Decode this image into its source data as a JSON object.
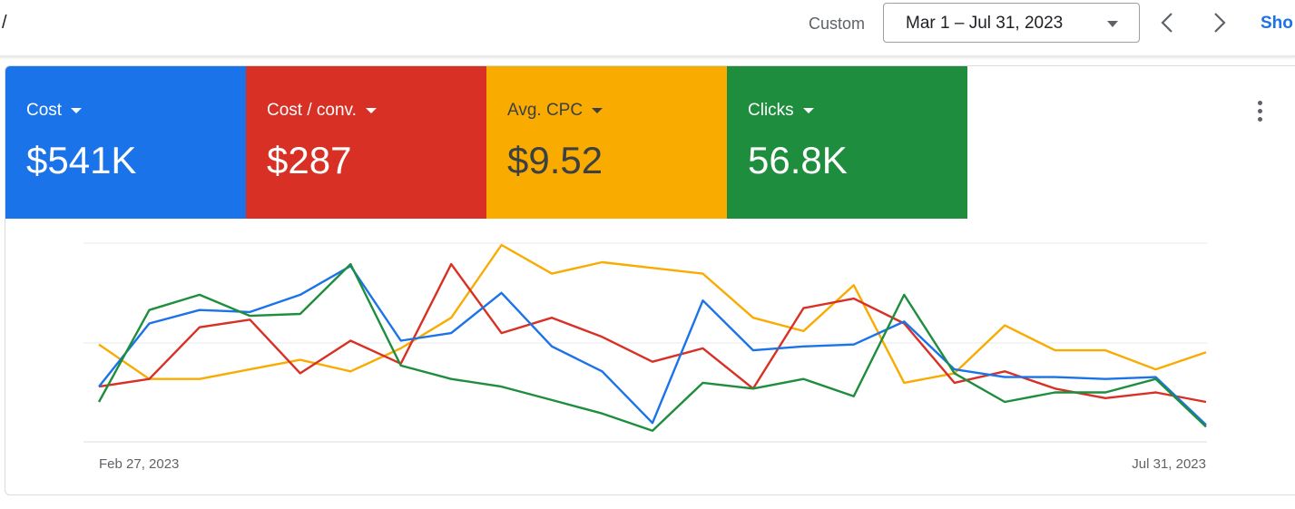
{
  "topbar": {
    "slash": "/",
    "custom_label": "Custom",
    "date_range": "Mar 1 – Jul 31, 2023",
    "show_label": "Sho"
  },
  "colors": {
    "blue": "#1a73e8",
    "red": "#d93025",
    "yellow": "#f9ab00",
    "green": "#1e8e3e"
  },
  "metrics": [
    {
      "label": "Cost",
      "value": "$541K",
      "color": "#1a73e8",
      "text_color": "#ffffff"
    },
    {
      "label": "Cost / conv.",
      "value": "$287",
      "color": "#d93025",
      "text_color": "#ffffff"
    },
    {
      "label": "Avg. CPC",
      "value": "$9.52",
      "color": "#f9ab00",
      "text_color": "#3c4043"
    },
    {
      "label": "Clicks",
      "value": "56.8K",
      "color": "#1e8e3e",
      "text_color": "#ffffff"
    }
  ],
  "chart_data": {
    "type": "line",
    "grid": true,
    "x_tick_labels": [
      "Feb 27, 2023",
      "Jul 31, 2023"
    ],
    "x": [
      "Feb 27, 2023",
      "Mar 6, 2023",
      "Mar 13, 2023",
      "Mar 20, 2023",
      "Mar 27, 2023",
      "Apr 3, 2023",
      "Apr 10, 2023",
      "Apr 17, 2023",
      "Apr 24, 2023",
      "May 1, 2023",
      "May 8, 2023",
      "May 15, 2023",
      "May 22, 2023",
      "May 29, 2023",
      "Jun 5, 2023",
      "Jun 12, 2023",
      "Jun 19, 2023",
      "Jun 26, 2023",
      "Jul 3, 2023",
      "Jul 10, 2023",
      "Jul 17, 2023",
      "Jul 24, 2023",
      "Jul 31, 2023"
    ],
    "ylim": [
      0,
      100
    ],
    "series": [
      {
        "metric": "Cost",
        "color": "#1a73e8",
        "values": [
          26,
          59,
          66,
          65,
          74,
          89,
          50,
          54,
          75,
          47,
          34,
          7,
          71,
          45,
          47,
          48,
          60,
          35,
          31,
          31,
          30,
          31,
          6
        ]
      },
      {
        "metric": "Cost / conv.",
        "color": "#d93025",
        "values": [
          26,
          30,
          57,
          61,
          33,
          50,
          38,
          90,
          54,
          62,
          52,
          39,
          46,
          25,
          67,
          72,
          59,
          28,
          34,
          25,
          20,
          23,
          18
        ]
      },
      {
        "metric": "Avg. CPC",
        "color": "#f9ab00",
        "values": [
          48,
          30,
          30,
          35,
          40,
          34,
          46,
          62,
          100,
          85,
          91,
          88,
          85,
          62,
          55,
          79,
          28,
          33,
          58,
          45,
          45,
          35,
          44
        ]
      },
      {
        "metric": "Clicks",
        "color": "#1e8e3e",
        "values": [
          18,
          66,
          74,
          63,
          64,
          90,
          37,
          30,
          26,
          19,
          12,
          3,
          28,
          25,
          30,
          21,
          74,
          33,
          18,
          23,
          23,
          30,
          5
        ]
      }
    ]
  }
}
